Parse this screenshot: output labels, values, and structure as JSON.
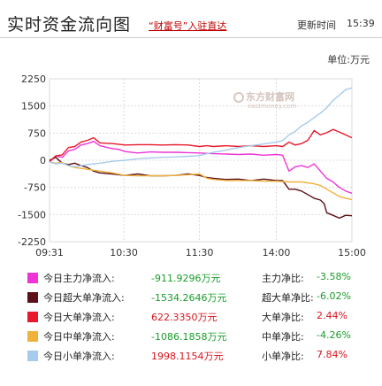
{
  "header": {
    "title": "实时资金流向图",
    "promo_link": "“财富号”入驻直达",
    "update_label": "更新时间",
    "update_time": "15:39"
  },
  "unit_label": "单位:万元",
  "watermark": {
    "brand": "东方财富网",
    "domain": "eastmoney.com"
  },
  "colors": {
    "main": "#ee34d6",
    "super": "#5c0f16",
    "large": "#e8192a",
    "medium": "#f0b13a",
    "small": "#a7cbec"
  },
  "chart_data": {
    "type": "line",
    "y_ticks": [
      2250,
      1500,
      750,
      0,
      -750,
      -1500,
      -2250
    ],
    "ylim": [
      -2250,
      2250
    ],
    "x_ticks": [
      "09:31",
      "10:30",
      "11:30",
      "14:00",
      "15:00"
    ],
    "x_tick_positions": [
      0,
      59,
      119,
      180,
      240
    ],
    "x_range": [
      0,
      240
    ],
    "series": [
      {
        "key": "main",
        "points": [
          [
            0,
            -50
          ],
          [
            5,
            120
          ],
          [
            10,
            80
          ],
          [
            15,
            260
          ],
          [
            20,
            300
          ],
          [
            25,
            420
          ],
          [
            30,
            460
          ],
          [
            35,
            520
          ],
          [
            40,
            400
          ],
          [
            45,
            360
          ],
          [
            50,
            320
          ],
          [
            55,
            300
          ],
          [
            60,
            240
          ],
          [
            70,
            200
          ],
          [
            80,
            230
          ],
          [
            90,
            220
          ],
          [
            100,
            220
          ],
          [
            110,
            210
          ],
          [
            119,
            200
          ],
          [
            125,
            190
          ],
          [
            130,
            180
          ],
          [
            140,
            170
          ],
          [
            150,
            160
          ],
          [
            160,
            170
          ],
          [
            170,
            140
          ],
          [
            180,
            160
          ],
          [
            185,
            140
          ],
          [
            190,
            -300
          ],
          [
            195,
            -180
          ],
          [
            200,
            -150
          ],
          [
            205,
            -200
          ],
          [
            210,
            -100
          ],
          [
            215,
            -300
          ],
          [
            220,
            -500
          ],
          [
            225,
            -600
          ],
          [
            230,
            -750
          ],
          [
            235,
            -850
          ],
          [
            240,
            -912
          ]
        ]
      },
      {
        "key": "super",
        "points": [
          [
            0,
            0
          ],
          [
            5,
            80
          ],
          [
            10,
            -80
          ],
          [
            15,
            -120
          ],
          [
            20,
            -80
          ],
          [
            25,
            -150
          ],
          [
            30,
            -200
          ],
          [
            35,
            -300
          ],
          [
            40,
            -350
          ],
          [
            50,
            -380
          ],
          [
            60,
            -420
          ],
          [
            70,
            -380
          ],
          [
            80,
            -430
          ],
          [
            90,
            -430
          ],
          [
            100,
            -420
          ],
          [
            110,
            -380
          ],
          [
            119,
            -420
          ],
          [
            125,
            -480
          ],
          [
            130,
            -500
          ],
          [
            140,
            -530
          ],
          [
            150,
            -520
          ],
          [
            160,
            -560
          ],
          [
            170,
            -520
          ],
          [
            180,
            -560
          ],
          [
            185,
            -560
          ],
          [
            190,
            -800
          ],
          [
            195,
            -800
          ],
          [
            200,
            -850
          ],
          [
            205,
            -950
          ],
          [
            210,
            -1050
          ],
          [
            215,
            -1100
          ],
          [
            218,
            -1200
          ],
          [
            220,
            -1450
          ],
          [
            225,
            -1520
          ],
          [
            230,
            -1600
          ],
          [
            235,
            -1520
          ],
          [
            240,
            -1534
          ]
        ]
      },
      {
        "key": "large",
        "points": [
          [
            0,
            -30
          ],
          [
            5,
            120
          ],
          [
            10,
            150
          ],
          [
            15,
            350
          ],
          [
            20,
            380
          ],
          [
            25,
            500
          ],
          [
            30,
            550
          ],
          [
            35,
            620
          ],
          [
            40,
            480
          ],
          [
            50,
            460
          ],
          [
            60,
            420
          ],
          [
            70,
            430
          ],
          [
            80,
            430
          ],
          [
            90,
            420
          ],
          [
            100,
            430
          ],
          [
            110,
            420
          ],
          [
            119,
            380
          ],
          [
            125,
            400
          ],
          [
            130,
            380
          ],
          [
            140,
            400
          ],
          [
            150,
            380
          ],
          [
            160,
            400
          ],
          [
            170,
            380
          ],
          [
            180,
            400
          ],
          [
            185,
            380
          ],
          [
            190,
            500
          ],
          [
            195,
            420
          ],
          [
            200,
            460
          ],
          [
            205,
            550
          ],
          [
            210,
            820
          ],
          [
            215,
            700
          ],
          [
            220,
            760
          ],
          [
            225,
            850
          ],
          [
            230,
            780
          ],
          [
            235,
            700
          ],
          [
            240,
            622
          ]
        ]
      },
      {
        "key": "medium",
        "points": [
          [
            0,
            -50
          ],
          [
            5,
            -80
          ],
          [
            10,
            -60
          ],
          [
            15,
            -150
          ],
          [
            20,
            -200
          ],
          [
            30,
            -250
          ],
          [
            40,
            -300
          ],
          [
            50,
            -350
          ],
          [
            60,
            -420
          ],
          [
            70,
            -430
          ],
          [
            80,
            -430
          ],
          [
            90,
            -430
          ],
          [
            100,
            -420
          ],
          [
            110,
            -400
          ],
          [
            119,
            -380
          ],
          [
            125,
            -500
          ],
          [
            130,
            -530
          ],
          [
            140,
            -560
          ],
          [
            150,
            -560
          ],
          [
            160,
            -560
          ],
          [
            170,
            -580
          ],
          [
            180,
            -580
          ],
          [
            190,
            -600
          ],
          [
            200,
            -600
          ],
          [
            210,
            -650
          ],
          [
            215,
            -700
          ],
          [
            220,
            -800
          ],
          [
            225,
            -900
          ],
          [
            230,
            -1000
          ],
          [
            235,
            -1050
          ],
          [
            240,
            -1086
          ]
        ]
      },
      {
        "key": "small",
        "points": [
          [
            0,
            -50
          ],
          [
            5,
            -100
          ],
          [
            10,
            -80
          ],
          [
            15,
            -150
          ],
          [
            20,
            -180
          ],
          [
            30,
            -120
          ],
          [
            40,
            -80
          ],
          [
            50,
            -30
          ],
          [
            60,
            0
          ],
          [
            70,
            40
          ],
          [
            80,
            60
          ],
          [
            90,
            80
          ],
          [
            100,
            90
          ],
          [
            110,
            110
          ],
          [
            119,
            130
          ],
          [
            125,
            180
          ],
          [
            130,
            220
          ],
          [
            140,
            280
          ],
          [
            150,
            350
          ],
          [
            160,
            400
          ],
          [
            170,
            450
          ],
          [
            180,
            500
          ],
          [
            185,
            540
          ],
          [
            190,
            700
          ],
          [
            195,
            800
          ],
          [
            200,
            950
          ],
          [
            205,
            1050
          ],
          [
            210,
            1180
          ],
          [
            215,
            1300
          ],
          [
            220,
            1450
          ],
          [
            225,
            1650
          ],
          [
            230,
            1800
          ],
          [
            235,
            1950
          ],
          [
            240,
            1998
          ]
        ]
      }
    ],
    "legend": [
      {
        "key": "main",
        "label": "今日主力净流入:",
        "value": "-911.9296万元",
        "value_sign": "neg",
        "ratio_label": "主力净比:",
        "ratio": "-3.58%",
        "ratio_sign": "neg"
      },
      {
        "key": "super",
        "label": "今日超大单净流入:",
        "value": "-1534.2646万元",
        "value_sign": "neg",
        "ratio_label": "超大单净比:",
        "ratio": "-6.02%",
        "ratio_sign": "neg"
      },
      {
        "key": "large",
        "label": "今日大单净流入:",
        "value": "622.3350万元",
        "value_sign": "pos",
        "ratio_label": "大单净比:",
        "ratio": "2.44%",
        "ratio_sign": "pos"
      },
      {
        "key": "medium",
        "label": "今日中单净流入:",
        "value": "-1086.1858万元",
        "value_sign": "neg",
        "ratio_label": "中单净比:",
        "ratio": "-4.26%",
        "ratio_sign": "neg"
      },
      {
        "key": "small",
        "label": "今日小单净流入:",
        "value": "1998.1154万元",
        "value_sign": "pos",
        "ratio_label": "小单净比:",
        "ratio": "7.84%",
        "ratio_sign": "pos"
      }
    ]
  }
}
